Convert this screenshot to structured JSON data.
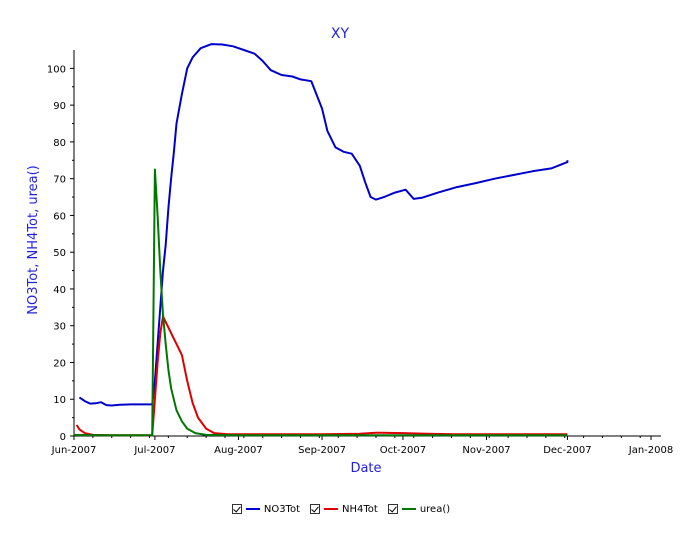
{
  "chart_data": {
    "type": "line",
    "title": "XY",
    "xlabel": "Date",
    "ylabel": "NO3Tot, NH4Tot, urea()",
    "ylim": [
      0,
      105
    ],
    "yticks": [
      0,
      10,
      20,
      30,
      40,
      50,
      60,
      70,
      80,
      90,
      100
    ],
    "x_axis_type": "date",
    "xlim": [
      "2007-06-01",
      "2008-01-01"
    ],
    "xticks": [
      {
        "date": "2007-06-01",
        "label": "Jun-2007"
      },
      {
        "date": "2007-07-01",
        "label": "Jul-2007"
      },
      {
        "date": "2007-08-01",
        "label": "Aug-2007"
      },
      {
        "date": "2007-09-01",
        "label": "Sep-2007"
      },
      {
        "date": "2007-10-01",
        "label": "Oct-2007"
      },
      {
        "date": "2007-11-01",
        "label": "Nov-2007"
      },
      {
        "date": "2007-12-01",
        "label": "Dec-2007"
      },
      {
        "date": "2008-01-01",
        "label": "Jan-2008"
      }
    ],
    "grid": false,
    "legend_position": "bottom",
    "series": [
      {
        "name": "NO3Tot",
        "color": "#0000cc",
        "points": [
          [
            "2007-06-03",
            10.5
          ],
          [
            "2007-06-05",
            9.5
          ],
          [
            "2007-06-07",
            8.8
          ],
          [
            "2007-06-09",
            8.9
          ],
          [
            "2007-06-11",
            9.2
          ],
          [
            "2007-06-13",
            8.4
          ],
          [
            "2007-06-15",
            8.3
          ],
          [
            "2007-06-18",
            8.5
          ],
          [
            "2007-06-22",
            8.6
          ],
          [
            "2007-06-26",
            8.6
          ],
          [
            "2007-06-30",
            8.6
          ],
          [
            "2007-07-01",
            15.0
          ],
          [
            "2007-07-02",
            25.0
          ],
          [
            "2007-07-03",
            35.0
          ],
          [
            "2007-07-04",
            45.0
          ],
          [
            "2007-07-05",
            52.0
          ],
          [
            "2007-07-06",
            62.0
          ],
          [
            "2007-07-07",
            70.0
          ],
          [
            "2007-07-08",
            77.0
          ],
          [
            "2007-07-09",
            85.0
          ],
          [
            "2007-07-11",
            93.0
          ],
          [
            "2007-07-13",
            100.0
          ],
          [
            "2007-07-15",
            103.0
          ],
          [
            "2007-07-18",
            105.5
          ],
          [
            "2007-07-22",
            106.6
          ],
          [
            "2007-07-26",
            106.5
          ],
          [
            "2007-07-30",
            106.0
          ],
          [
            "2007-08-03",
            105.0
          ],
          [
            "2007-08-07",
            104.0
          ],
          [
            "2007-08-10",
            102.0
          ],
          [
            "2007-08-13",
            99.5
          ],
          [
            "2007-08-17",
            98.2
          ],
          [
            "2007-08-21",
            97.8
          ],
          [
            "2007-08-24",
            97.0
          ],
          [
            "2007-08-28",
            96.5
          ],
          [
            "2007-09-01",
            89.0
          ],
          [
            "2007-09-03",
            83.0
          ],
          [
            "2007-09-06",
            78.5
          ],
          [
            "2007-09-09",
            77.3
          ],
          [
            "2007-09-12",
            76.8
          ],
          [
            "2007-09-15",
            73.5
          ],
          [
            "2007-09-17",
            69.0
          ],
          [
            "2007-09-19",
            65.0
          ],
          [
            "2007-09-21",
            64.3
          ],
          [
            "2007-09-24",
            65.0
          ],
          [
            "2007-09-28",
            66.2
          ],
          [
            "2007-10-02",
            67.0
          ],
          [
            "2007-10-05",
            64.5
          ],
          [
            "2007-10-08",
            64.8
          ],
          [
            "2007-10-14",
            66.2
          ],
          [
            "2007-10-21",
            67.7
          ],
          [
            "2007-10-28",
            68.8
          ],
          [
            "2007-11-04",
            70.0
          ],
          [
            "2007-11-11",
            71.0
          ],
          [
            "2007-11-18",
            72.0
          ],
          [
            "2007-11-25",
            72.8
          ],
          [
            "2007-12-01",
            74.5
          ],
          [
            "2007-12-01",
            75.0
          ]
        ]
      },
      {
        "name": "NH4Tot",
        "color": "#dd0000",
        "points": [
          [
            "2007-06-02",
            3.0
          ],
          [
            "2007-06-03",
            1.8
          ],
          [
            "2007-06-05",
            0.8
          ],
          [
            "2007-06-08",
            0.3
          ],
          [
            "2007-06-15",
            0.2
          ],
          [
            "2007-06-30",
            0.2
          ],
          [
            "2007-07-01",
            10.0
          ],
          [
            "2007-07-02",
            20.0
          ],
          [
            "2007-07-03",
            28.0
          ],
          [
            "2007-07-04",
            32.5
          ],
          [
            "2007-07-05",
            31.0
          ],
          [
            "2007-07-07",
            28.0
          ],
          [
            "2007-07-09",
            25.0
          ],
          [
            "2007-07-11",
            22.0
          ],
          [
            "2007-07-13",
            15.0
          ],
          [
            "2007-07-15",
            9.0
          ],
          [
            "2007-07-17",
            5.0
          ],
          [
            "2007-07-20",
            2.0
          ],
          [
            "2007-07-23",
            0.8
          ],
          [
            "2007-07-28",
            0.5
          ],
          [
            "2007-08-10",
            0.5
          ],
          [
            "2007-09-01",
            0.5
          ],
          [
            "2007-09-15",
            0.6
          ],
          [
            "2007-09-21",
            0.9
          ],
          [
            "2007-10-01",
            0.8
          ],
          [
            "2007-10-10",
            0.6
          ],
          [
            "2007-10-20",
            0.5
          ],
          [
            "2007-11-01",
            0.5
          ],
          [
            "2007-11-15",
            0.5
          ],
          [
            "2007-12-01",
            0.5
          ]
        ]
      },
      {
        "name": "urea()",
        "color": "#007700",
        "points": [
          [
            "2007-06-01",
            0.3
          ],
          [
            "2007-06-10",
            0.2
          ],
          [
            "2007-06-30",
            0.2
          ],
          [
            "2007-07-01",
            72.5
          ],
          [
            "2007-07-02",
            60.0
          ],
          [
            "2007-07-03",
            45.0
          ],
          [
            "2007-07-04",
            33.0
          ],
          [
            "2007-07-05",
            25.0
          ],
          [
            "2007-07-06",
            18.0
          ],
          [
            "2007-07-07",
            13.0
          ],
          [
            "2007-07-09",
            7.0
          ],
          [
            "2007-07-11",
            4.0
          ],
          [
            "2007-07-13",
            2.0
          ],
          [
            "2007-07-16",
            0.8
          ],
          [
            "2007-07-20",
            0.3
          ],
          [
            "2007-08-01",
            0.2
          ],
          [
            "2007-09-01",
            0.2
          ],
          [
            "2007-10-01",
            0.2
          ],
          [
            "2007-11-01",
            0.2
          ],
          [
            "2007-12-01",
            0.2
          ]
        ]
      }
    ]
  },
  "legend": {
    "items": [
      {
        "label": "NO3Tot",
        "color": "#0000cc"
      },
      {
        "label": "NH4Tot",
        "color": "#dd0000"
      },
      {
        "label": "urea()",
        "color": "#007700"
      }
    ]
  }
}
